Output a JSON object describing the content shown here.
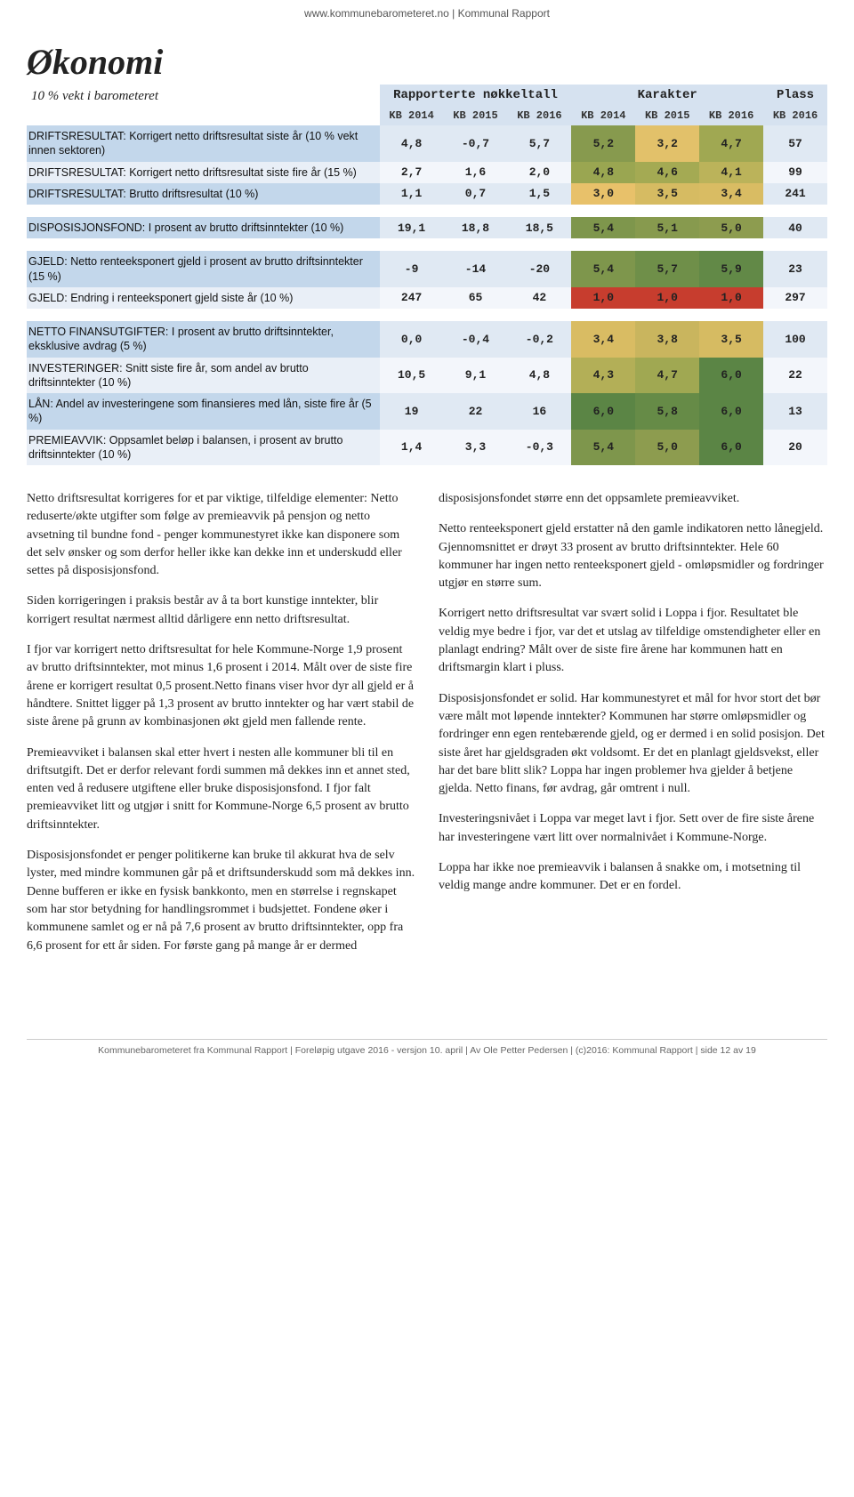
{
  "header_link": "www.kommunebarometeret.no | Kommunal Rapport",
  "page_title": "Økonomi",
  "subtitle": "10 % vekt i barometeret",
  "group_headers": [
    "Rapporterte nøkkeltall",
    "Karakter",
    "Plass"
  ],
  "sub_headers": [
    "KB 2014",
    "KB 2015",
    "KB 2016",
    "KB 2014",
    "KB 2015",
    "KB 2016",
    "KB 2016"
  ],
  "table": {
    "header_bg": "#d6e2f0",
    "label_bg_primary": "#c3d7eb",
    "label_bg_alt": "#e9eff7",
    "plain_num_color": "#333333",
    "bold_num_color": "#000000",
    "groups": [
      {
        "rows": [
          {
            "label": "DRIFTSRESULTAT: Korrigert netto driftsresultat siste år (10 % vekt innen sektoren)",
            "label_bg": "#c3d7eb",
            "cells": [
              {
                "v": "4,8",
                "bg": "#e0e9f3"
              },
              {
                "v": "-0,7",
                "bg": "#e0e9f3"
              },
              {
                "v": "5,7",
                "bg": "#e0e9f3",
                "bold": true
              },
              {
                "v": "5,2",
                "bg": "#879a4e"
              },
              {
                "v": "3,2",
                "bg": "#e2c16a"
              },
              {
                "v": "4,7",
                "bg": "#a0a852"
              },
              {
                "v": "57",
                "bg": "#e0e9f3",
                "bold": true
              }
            ]
          },
          {
            "label": "DRIFTSRESULTAT: Korrigert netto driftsresultat siste fire år (15 %)",
            "label_bg": "#e9eff7",
            "cells": [
              {
                "v": "2,7",
                "bg": "#f3f6fb"
              },
              {
                "v": "1,6",
                "bg": "#f3f6fb"
              },
              {
                "v": "2,0",
                "bg": "#f3f6fb",
                "bold": true
              },
              {
                "v": "4,8",
                "bg": "#9aa651"
              },
              {
                "v": "4,6",
                "bg": "#a4aa53"
              },
              {
                "v": "4,1",
                "bg": "#bbb35a"
              },
              {
                "v": "99",
                "bg": "#f3f6fb",
                "bold": true
              }
            ]
          },
          {
            "label": "DRIFTSRESULTAT: Brutto driftsresultat (10 %)",
            "label_bg": "#c3d7eb",
            "cells": [
              {
                "v": "1,1",
                "bg": "#e0e9f3"
              },
              {
                "v": "0,7",
                "bg": "#e0e9f3"
              },
              {
                "v": "1,5",
                "bg": "#e0e9f3",
                "bold": true
              },
              {
                "v": "3,0",
                "bg": "#e8c16a"
              },
              {
                "v": "3,5",
                "bg": "#d6bb62"
              },
              {
                "v": "3,4",
                "bg": "#d9bc63"
              },
              {
                "v": "241",
                "bg": "#e0e9f3",
                "bold": true
              }
            ]
          }
        ]
      },
      {
        "rows": [
          {
            "label": "DISPOSISJONSFOND: I prosent av brutto driftsinntekter (10 %)",
            "label_bg": "#c3d7eb",
            "cells": [
              {
                "v": "19,1",
                "bg": "#e0e9f3"
              },
              {
                "v": "18,8",
                "bg": "#e0e9f3"
              },
              {
                "v": "18,5",
                "bg": "#e0e9f3",
                "bold": true
              },
              {
                "v": "5,4",
                "bg": "#7e964c"
              },
              {
                "v": "5,1",
                "bg": "#879a4e"
              },
              {
                "v": "5,0",
                "bg": "#8d9c4f"
              },
              {
                "v": "40",
                "bg": "#e0e9f3",
                "bold": true
              }
            ]
          }
        ]
      },
      {
        "rows": [
          {
            "label": "GJELD: Netto renteeksponert gjeld i prosent av brutto driftsinntekter (15 %)",
            "label_bg": "#c3d7eb",
            "cells": [
              {
                "v": "-9",
                "bg": "#e0e9f3"
              },
              {
                "v": "-14",
                "bg": "#e0e9f3"
              },
              {
                "v": "-20",
                "bg": "#e0e9f3",
                "bold": true
              },
              {
                "v": "5,4",
                "bg": "#7e964c"
              },
              {
                "v": "5,7",
                "bg": "#6f8f49"
              },
              {
                "v": "5,9",
                "bg": "#628947"
              },
              {
                "v": "23",
                "bg": "#e0e9f3",
                "bold": true
              }
            ]
          },
          {
            "label": "GJELD: Endring i renteeksponert gjeld siste år (10 %)",
            "label_bg": "#e9eff7",
            "cells": [
              {
                "v": "247",
                "bg": "#f3f6fb"
              },
              {
                "v": "65",
                "bg": "#f3f6fb"
              },
              {
                "v": "42",
                "bg": "#f3f6fb",
                "bold": true
              },
              {
                "v": "1,0",
                "bg": "#c73d2e"
              },
              {
                "v": "1,0",
                "bg": "#c73d2e"
              },
              {
                "v": "1,0",
                "bg": "#c73d2e"
              },
              {
                "v": "297",
                "bg": "#f3f6fb",
                "bold": true
              }
            ]
          }
        ]
      },
      {
        "rows": [
          {
            "label": "NETTO FINANSUTGIFTER: I prosent av brutto driftsinntekter, eksklusive avdrag (5 %)",
            "label_bg": "#c3d7eb",
            "cells": [
              {
                "v": "0,0",
                "bg": "#e0e9f3"
              },
              {
                "v": "-0,4",
                "bg": "#e0e9f3"
              },
              {
                "v": "-0,2",
                "bg": "#e0e9f3",
                "bold": true
              },
              {
                "v": "3,4",
                "bg": "#d9bc63"
              },
              {
                "v": "3,8",
                "bg": "#c9b55e"
              },
              {
                "v": "3,5",
                "bg": "#d6bb62"
              },
              {
                "v": "100",
                "bg": "#e0e9f3",
                "bold": true
              }
            ]
          },
          {
            "label": "INVESTERINGER: Snitt siste fire år, som andel av brutto driftsinntekter (10 %)",
            "label_bg": "#e9eff7",
            "cells": [
              {
                "v": "10,5",
                "bg": "#f3f6fb"
              },
              {
                "v": "9,1",
                "bg": "#f3f6fb"
              },
              {
                "v": "4,8",
                "bg": "#f3f6fb",
                "bold": true
              },
              {
                "v": "4,3",
                "bg": "#b3af57"
              },
              {
                "v": "4,7",
                "bg": "#a0a852"
              },
              {
                "v": "6,0",
                "bg": "#5b8545"
              },
              {
                "v": "22",
                "bg": "#f3f6fb",
                "bold": true
              }
            ]
          },
          {
            "label": "LÅN: Andel av investeringene som finansieres med lån, siste fire år (5 %)",
            "label_bg": "#c3d7eb",
            "cells": [
              {
                "v": "19",
                "bg": "#e0e9f3"
              },
              {
                "v": "22",
                "bg": "#e0e9f3"
              },
              {
                "v": "16",
                "bg": "#e0e9f3",
                "bold": true
              },
              {
                "v": "6,0",
                "bg": "#5b8545"
              },
              {
                "v": "5,8",
                "bg": "#668b47"
              },
              {
                "v": "6,0",
                "bg": "#5b8545"
              },
              {
                "v": "13",
                "bg": "#e0e9f3",
                "bold": true
              }
            ]
          },
          {
            "label": "PREMIEAVVIK: Oppsamlet beløp i balansen, i prosent av brutto driftsinntekter (10 %)",
            "label_bg": "#e9eff7",
            "cells": [
              {
                "v": "1,4",
                "bg": "#f3f6fb"
              },
              {
                "v": "3,3",
                "bg": "#f3f6fb"
              },
              {
                "v": "-0,3",
                "bg": "#f3f6fb",
                "bold": true
              },
              {
                "v": "5,4",
                "bg": "#7e964c"
              },
              {
                "v": "5,0",
                "bg": "#8d9c4f"
              },
              {
                "v": "6,0",
                "bg": "#5b8545"
              },
              {
                "v": "20",
                "bg": "#f3f6fb",
                "bold": true
              }
            ]
          }
        ]
      }
    ]
  },
  "body": {
    "left": [
      "Netto driftsresultat korrigeres for et par viktige, tilfeldige elementer: Netto reduserte/økte utgifter som følge av premieavvik på pensjon og netto avsetning til bundne fond - penger kommunestyret ikke kan disponere som det selv ønsker og som derfor heller ikke kan dekke inn et underskudd eller settes på disposisjonsfond.",
      "Siden korrigeringen i praksis består av å ta bort kunstige inntekter, blir korrigert resultat nærmest alltid dårligere enn netto driftsresultat.",
      "I fjor var korrigert netto driftsresultat for hele Kommune-Norge 1,9 prosent av brutto driftsinntekter, mot minus 1,6 prosent i 2014. Målt over de siste fire årene er korrigert resultat 0,5 prosent.Netto finans viser hvor dyr all gjeld er å håndtere. Snittet ligger på 1,3 prosent av brutto inntekter og har vært stabil de siste årene på grunn av kombinasjonen økt gjeld men fallende rente.",
      "Premieavviket i balansen skal etter hvert i nesten alle kommuner bli til en driftsutgift. Det er derfor relevant fordi summen må dekkes inn et annet sted, enten ved å redusere utgiftene eller bruke disposisjonsfond. I fjor falt premieavviket litt og utgjør i snitt for Kommune-Norge 6,5 prosent av brutto driftsinntekter.",
      "Disposisjonsfondet er penger politikerne kan bruke til akkurat hva de selv lyster, med mindre kommunen går på et driftsunderskudd som må dekkes inn. Denne bufferen er ikke en fysisk bankkonto, men en størrelse i regnskapet som har stor betydning for handlingsrommet i budsjettet. Fondene øker i kommunene samlet og er nå på 7,6 prosent av brutto driftsinntekter, opp fra 6,6 prosent for ett år siden. For første gang på mange år er dermed"
    ],
    "right": [
      "disposisjonsfondet større enn det oppsamlete premieavviket.",
      "Netto renteeksponert gjeld erstatter nå den gamle indikatoren netto lånegjeld. Gjennomsnittet er drøyt 33 prosent av brutto driftsinntekter. Hele 60 kommuner har ingen netto renteeksponert gjeld - omløpsmidler og fordringer utgjør en større sum.",
      "Korrigert netto driftsresultat var svært solid i Loppa i fjor. Resultatet ble veldig mye bedre i fjor, var det et utslag av tilfeldige omstendigheter eller en planlagt endring? Målt over de siste fire årene har kommunen hatt en driftsmargin klart i pluss.",
      "Disposisjonsfondet er solid. Har kommunestyret et mål for hvor stort det bør være målt mot løpende inntekter? Kommunen har større omløpsmidler og fordringer enn egen rentebærende gjeld, og er dermed i en solid posisjon. Det siste året har gjeldsgraden økt voldsomt. Er det en planlagt gjeldsvekst, eller har det bare blitt slik? Loppa har ingen problemer hva gjelder å betjene gjelda. Netto finans, før avdrag, går omtrent i null.",
      "Investeringsnivået i Loppa var meget lavt i fjor. Sett over de fire siste årene har investeringene vært litt over normalnivået i Kommune-Norge.",
      "Loppa har ikke noe premieavvik i balansen å snakke om, i motsetning til veldig mange andre kommuner. Det er en fordel."
    ]
  },
  "footer": "Kommunebarometeret fra Kommunal Rapport | Foreløpig utgave 2016 - versjon 10. april | Av Ole Petter Pedersen | (c)2016: Kommunal Rapport | side 12 av 19"
}
